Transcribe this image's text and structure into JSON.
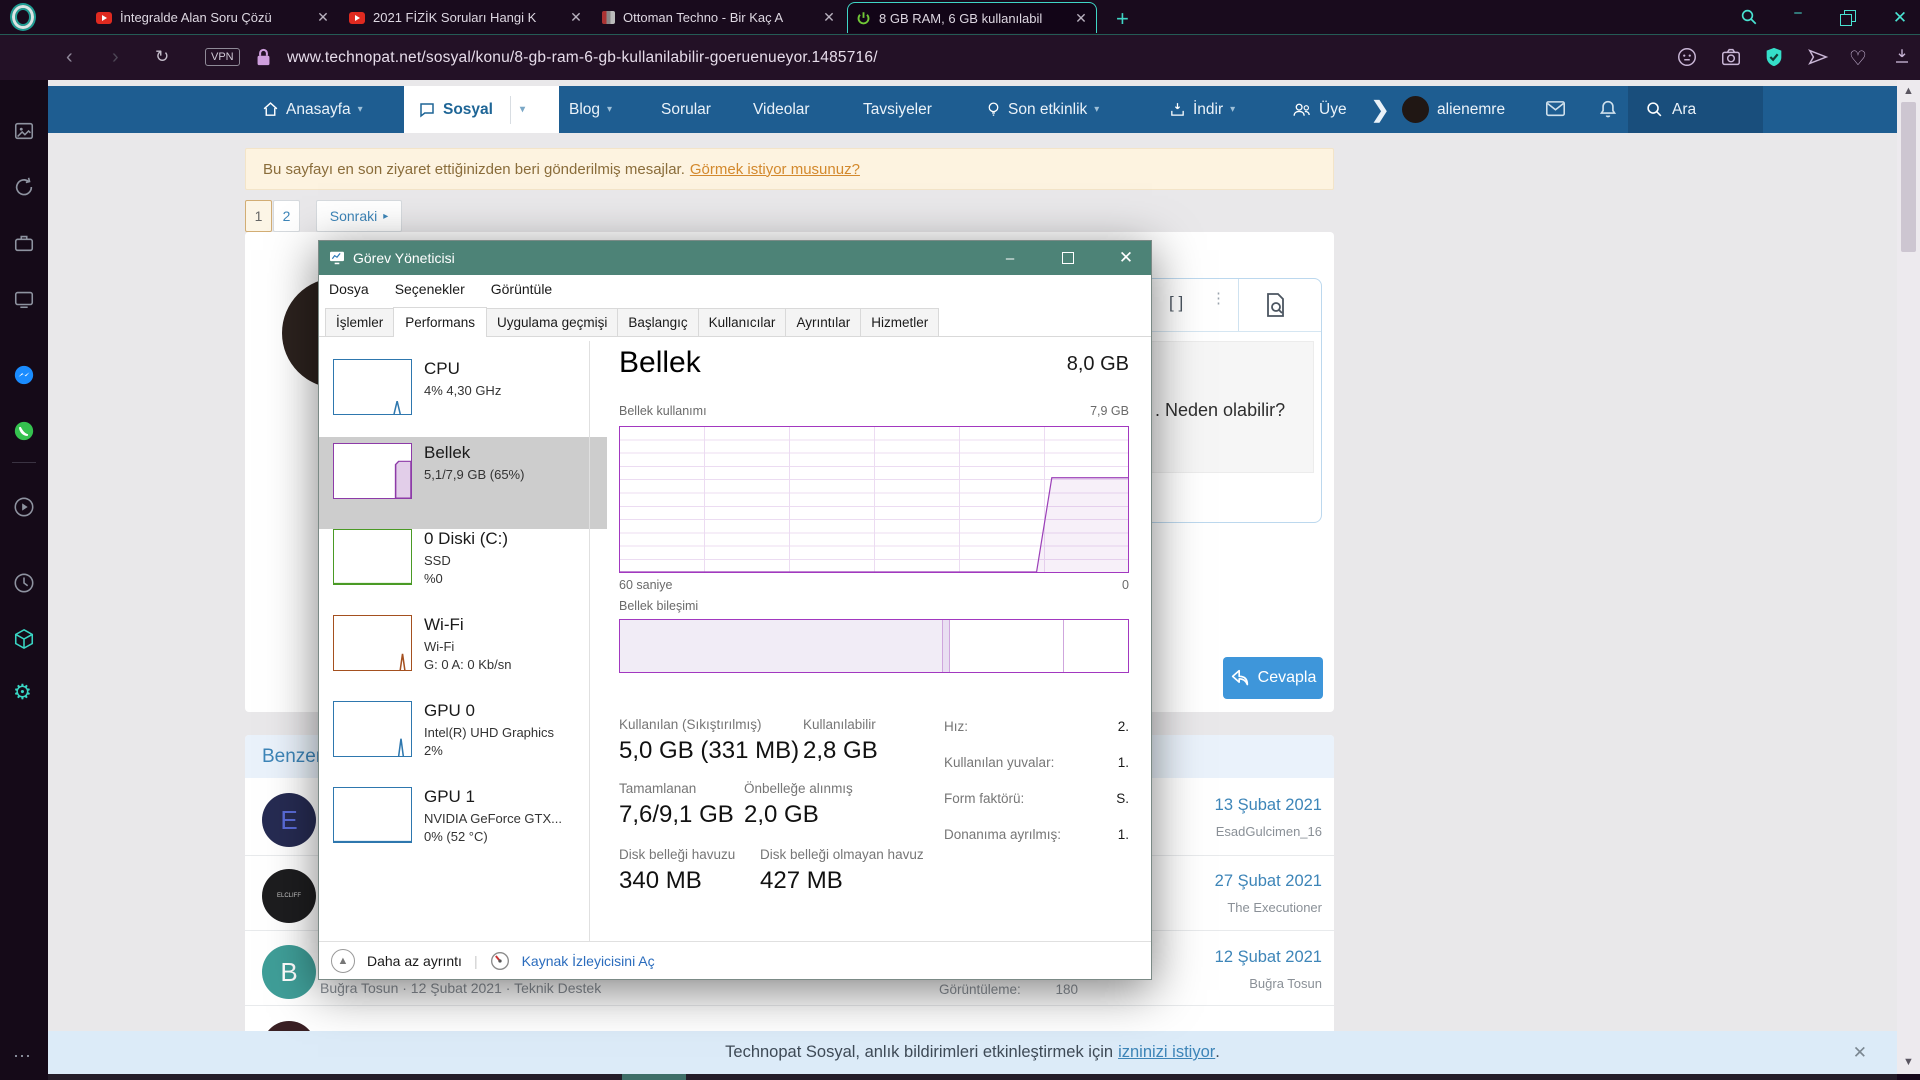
{
  "browser": {
    "vpn_label": "VPN",
    "url": "www.technopat.net/sosyal/konu/8-gb-ram-6-gb-kullanilabilir-goeruenueyor.1485716/",
    "tabs": [
      {
        "title": "İntegralde Alan Soru Çözü"
      },
      {
        "title": "2021 FİZİK Soruları Hangi K"
      },
      {
        "title": "Ottoman Techno - Bir Kaç A"
      },
      {
        "title": "8 GB RAM, 6 GB kullanılabil"
      }
    ]
  },
  "forum": {
    "nav": {
      "home": "Anasayfa",
      "social": "Sosyal",
      "blog": "Blog",
      "questions": "Sorular",
      "videos": "Videolar",
      "tips": "Tavsiyeler",
      "recent": "Son etkinlik",
      "download": "İndir",
      "members": "Üye",
      "username": "alienemre",
      "search": "Ara"
    },
    "banner": {
      "text": "Bu sayfayı en son ziyaret ettiğinizden beri gönderilmiş mesajlar.",
      "link": "Görmek istiyor musunuz?"
    },
    "pagination": {
      "p1": "1",
      "p2": "2",
      "next": "Sonraki"
    },
    "editor": {
      "quote": ". Neden olabilir?",
      "reply_label": "Cevapla"
    },
    "similar": {
      "title": "Benzer konular",
      "rows": [
        {
          "initial": "E",
          "badge": "",
          "date": "13 Şubat 2021",
          "user": "EsadGulcimen_16",
          "color": "#262b52",
          "fg": "#5a6cd8"
        },
        {
          "initial": "",
          "badge": "ELCLIFF",
          "date": "27 Şubat 2021",
          "user": "The Executioner",
          "color": "#1d1d1f",
          "fg": "#cccccc"
        },
        {
          "initial": "B",
          "badge": "",
          "date": "12 Şubat 2021",
          "user": "Buğra Tosun",
          "color": "#3f9e98",
          "fg": "#ffffff"
        }
      ]
    },
    "meta": {
      "byline": "Buğra Tosun · 12 Şubat 2021 · Teknik Destek",
      "views_label": "Görüntüleme:",
      "views": "180"
    },
    "notify": {
      "text": "Technopat Sosyal, anlık bildirimleri etkinleştirmek için",
      "link": "izninizi istiyor",
      "suffix": "."
    }
  },
  "task_manager": {
    "title": "Görev Yöneticisi",
    "menu": [
      "Dosya",
      "Seçenekler",
      "Görüntüle"
    ],
    "tabs": [
      "İşlemler",
      "Performans",
      "Uygulama geçmişi",
      "Başlangıç",
      "Kullanıcılar",
      "Ayrıntılar",
      "Hizmetler"
    ],
    "active_tab": "Performans",
    "sidebar": [
      {
        "name": "CPU",
        "line1": "4%  4,30 GHz",
        "line2": "",
        "color": "#2e77ae"
      },
      {
        "name": "Bellek",
        "line1": "5,1/7,9 GB (65%)",
        "line2": "",
        "color": "#8d3ba8",
        "selected": true
      },
      {
        "name": "0 Diski (C:)",
        "line1": "SSD",
        "line2": "%0",
        "color": "#4a9a25"
      },
      {
        "name": "Wi-Fi",
        "line1": "Wi-Fi",
        "line2": "G: 0 A: 0 Kb/sn",
        "color": "#a4501f"
      },
      {
        "name": "GPU 0",
        "line1": "Intel(R) UHD Graphics",
        "line2": "2%",
        "color": "#2e77ae"
      },
      {
        "name": "GPU 1",
        "line1": "NVIDIA GeForce GTX...",
        "line2": "0% (52 °C)",
        "color": "#2e77ae"
      }
    ],
    "main": {
      "title": "Bellek",
      "total": "8,0 GB",
      "usage_label": "Bellek kullanımı",
      "usage_max": "7,9 GB",
      "time_span": "60 saniye",
      "time_end": "0",
      "comp_label": "Bellek bileşimi"
    },
    "stats": {
      "used_label": "Kullanılan (Sıkıştırılmış)",
      "used": "5,0 GB (331 MB)",
      "avail_label": "Kullanılabilir",
      "avail": "2,8 GB",
      "committed_label": "Tamamlanan",
      "committed": "7,6/9,1 GB",
      "cached_label": "Önbelleğe alınmış",
      "cached": "2,0 GB",
      "paged_label": "Disk belleği havuzu",
      "paged": "340 MB",
      "nonpaged_label": "Disk belleği olmayan havuz",
      "nonpaged": "427 MB"
    },
    "info": [
      {
        "label": "Hız:",
        "value": "2."
      },
      {
        "label": "Kullanılan yuvalar:",
        "value": "1."
      },
      {
        "label": "Form faktörü:",
        "value": "S."
      },
      {
        "label": "Donanıma ayrılmış:",
        "value": "1."
      }
    ],
    "footer": {
      "less": "Daha az ayrıntı",
      "resmon": "Kaynak İzleyicisini Aç"
    }
  },
  "chart_data": [
    {
      "type": "area",
      "title": "Bellek kullanımı",
      "xlabel": "60 saniye -> 0",
      "ylim": [
        "0",
        "7,9 GB"
      ],
      "x_percent": [
        0,
        82,
        85,
        100
      ],
      "y_percent_used": [
        0,
        0,
        65,
        65
      ],
      "line_color": "#9b3fb8",
      "note": "kullanım ~%0'dan son 10 saniyede %65'e (5,1 GB) yükseliyor"
    },
    {
      "type": "stacked-bar",
      "title": "Bellek bileşimi",
      "segments_percent": [
        {
          "name": "kullanimda",
          "value": 63.5
        },
        {
          "name": "degistirilmis",
          "value": 1.5
        },
        {
          "name": "bekleme",
          "value": 22.5
        },
        {
          "name": "bos",
          "value": 12.5
        }
      ]
    }
  ]
}
